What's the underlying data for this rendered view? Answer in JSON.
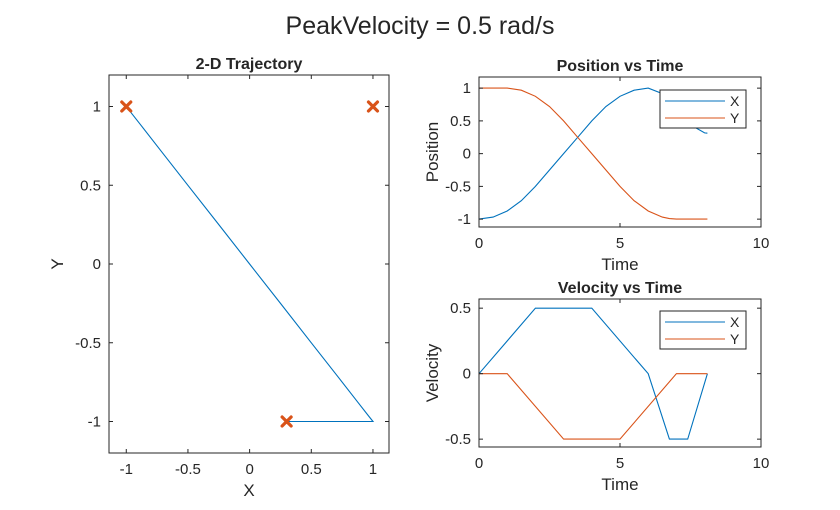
{
  "figure_title": "PeakVelocity = 0.5 rad/s",
  "colors": {
    "x": "#0072BD",
    "y": "#D95319",
    "axis": "#262626"
  },
  "chart_data": [
    {
      "id": "traj",
      "type": "line",
      "title": "2-D Trajectory",
      "xlabel": "X",
      "ylabel": "Y",
      "xlim": [
        -1.14,
        1.13
      ],
      "ylim": [
        -1.2,
        1.2
      ],
      "xticks": [
        -1,
        -0.5,
        0,
        0.5,
        1
      ],
      "xtick_labels": [
        "-1",
        "-0.5",
        "0",
        "0.5",
        "1"
      ],
      "yticks": [
        -1,
        -0.5,
        0,
        0.5,
        1
      ],
      "ytick_labels": [
        "-1",
        "-0.5",
        "0",
        "0.5",
        "1"
      ],
      "series": [
        {
          "x": [
            -1,
            -1,
            -1,
            -0.969,
            -0.875,
            -0.719,
            -0.5,
            -0.25,
            0,
            0.25,
            0.5,
            0.719,
            0.875,
            0.969,
            1.0,
            0.917,
            0.8125,
            0.6875,
            0.4875,
            0.441,
            0.316,
            0.3125
          ],
          "y": [
            1,
            1,
            1,
            0.969,
            0.875,
            0.719,
            0.5,
            0.25,
            0,
            -0.25,
            -0.5,
            -0.719,
            -0.875,
            -0.969,
            -1,
            -1,
            -1,
            -1,
            -1,
            -1,
            -1,
            -1
          ]
        }
      ],
      "markers": {
        "symbol": "x",
        "x": [
          -1,
          1,
          0.3
        ],
        "y": [
          1,
          1,
          -1
        ]
      }
    },
    {
      "id": "pos",
      "type": "line",
      "title": "Position vs Time",
      "xlabel": "Time",
      "ylabel": "Position",
      "xlim": [
        0,
        10
      ],
      "ylim": [
        -1.12,
        1.17
      ],
      "xticks": [
        0,
        5,
        10
      ],
      "xtick_labels": [
        "0",
        "5",
        "10"
      ],
      "yticks": [
        -1,
        -0.5,
        0,
        0.5,
        1
      ],
      "ytick_labels": [
        "-1",
        "-0.5",
        "0",
        "0.5",
        "1"
      ],
      "legend": {
        "position": "top-right",
        "entries": [
          "X",
          "Y"
        ]
      },
      "x": [
        0,
        0.5,
        1,
        1.5,
        2,
        2.5,
        3,
        3.5,
        4,
        4.5,
        5,
        5.5,
        6,
        6.5,
        6.75,
        7,
        7.4,
        7.5,
        8,
        8.1
      ],
      "series": [
        {
          "name": "X",
          "values": [
            -1,
            -0.969,
            -0.875,
            -0.719,
            -0.5,
            -0.25,
            0,
            0.25,
            0.5,
            0.719,
            0.875,
            0.969,
            1.0,
            0.917,
            0.8125,
            0.6875,
            0.4875,
            0.441,
            0.316,
            0.3125
          ]
        },
        {
          "name": "Y",
          "values": [
            1,
            1,
            1,
            0.969,
            0.875,
            0.719,
            0.5,
            0.25,
            0,
            -0.25,
            -0.5,
            -0.719,
            -0.875,
            -0.969,
            -0.992,
            -1,
            -1,
            -1,
            -1,
            -1
          ]
        }
      ]
    },
    {
      "id": "vel",
      "type": "line",
      "title": "Velocity vs Time",
      "xlabel": "Time",
      "ylabel": "Velocity",
      "xlim": [
        0,
        10
      ],
      "ylim": [
        -0.56,
        0.57
      ],
      "xticks": [
        0,
        5,
        10
      ],
      "xtick_labels": [
        "0",
        "5",
        "10"
      ],
      "yticks": [
        -0.5,
        0,
        0.5
      ],
      "ytick_labels": [
        "-0.5",
        "0",
        "0.5"
      ],
      "legend": {
        "position": "top-right",
        "entries": [
          "X",
          "Y"
        ]
      },
      "series": [
        {
          "name": "X",
          "x": [
            0,
            2,
            4,
            6,
            6.75,
            7.4,
            8.1
          ],
          "values": [
            0,
            0.5,
            0.5,
            0,
            -0.5,
            -0.5,
            0
          ]
        },
        {
          "name": "Y",
          "x": [
            0,
            1,
            3,
            5,
            7,
            8.1
          ],
          "values": [
            0,
            0,
            -0.5,
            -0.5,
            0,
            0
          ]
        }
      ]
    }
  ]
}
